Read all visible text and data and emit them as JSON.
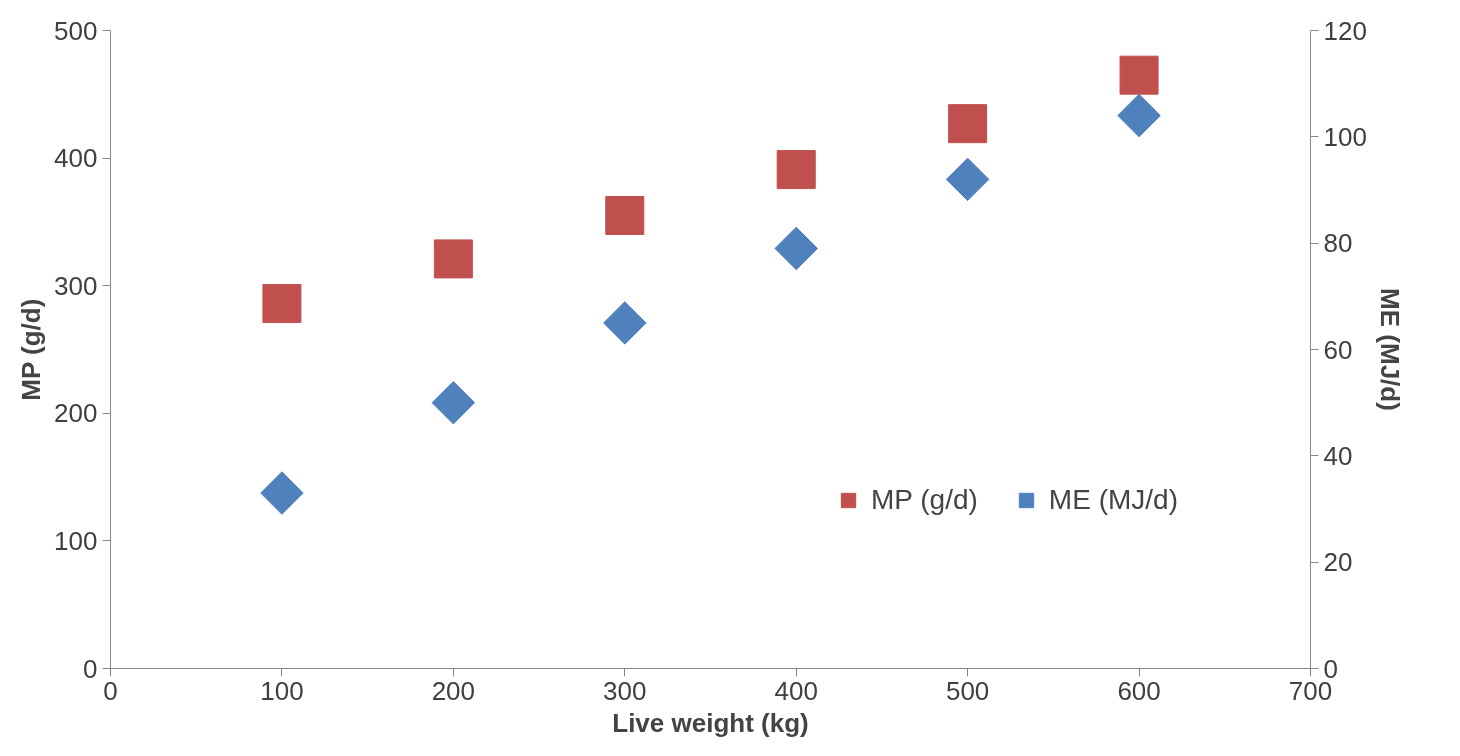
{
  "chart_data": {
    "type": "scatter",
    "xlabel": "Live weight (kg)",
    "ylabel": "MP (g/d)",
    "y2label": "ME (MJ/d)",
    "x": [
      100,
      200,
      300,
      400,
      500,
      600
    ],
    "series": [
      {
        "name": "MP (g/d)",
        "color": "#c0504d",
        "marker": "square",
        "values": [
          286,
          321,
          355,
          391,
          427,
          465
        ]
      },
      {
        "name": "ME (MJ/d)",
        "color": "#4f81bd",
        "marker": "diamond",
        "axis": "y2",
        "values": [
          33,
          50,
          65,
          79,
          92,
          104
        ]
      }
    ],
    "xlim": [
      0,
      700
    ],
    "xticks": [
      0,
      100,
      200,
      300,
      400,
      500,
      600,
      700
    ],
    "ylim": [
      0,
      500
    ],
    "yticks": [
      0,
      100,
      200,
      300,
      400,
      500
    ],
    "y2lim": [
      0,
      120
    ],
    "y2ticks": [
      0,
      20,
      40,
      60,
      80,
      100,
      120
    ],
    "grid": false,
    "legend": "right"
  }
}
